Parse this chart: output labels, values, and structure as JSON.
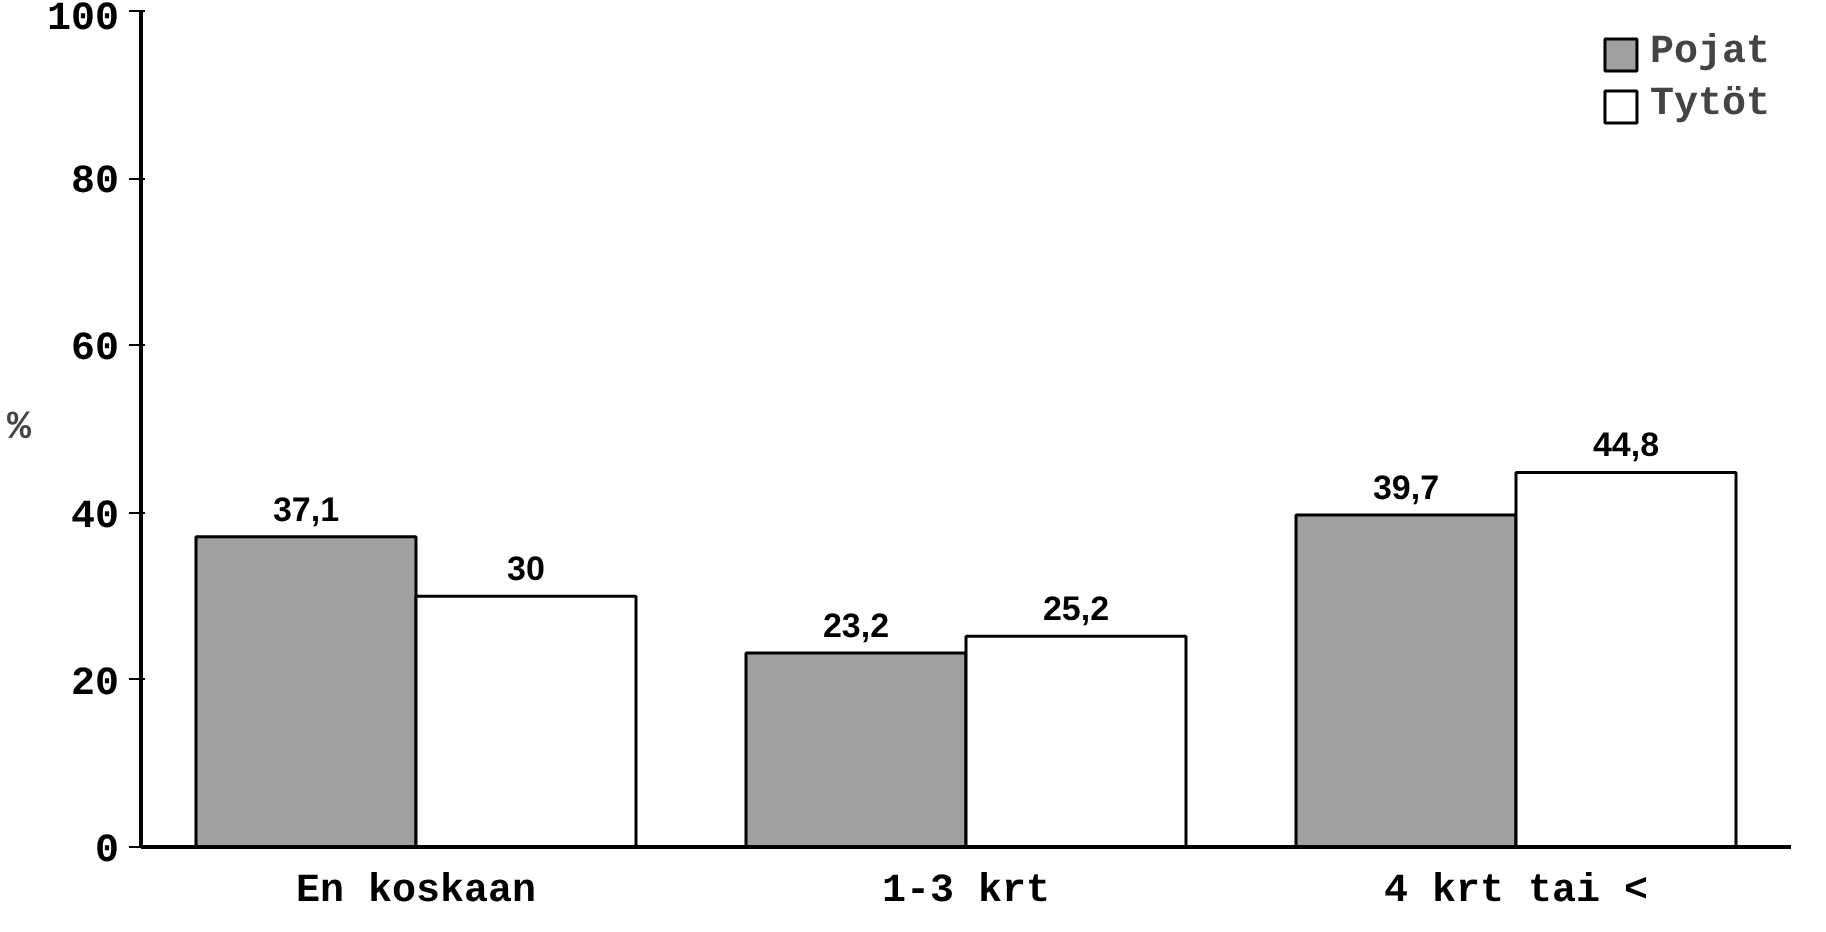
{
  "chart_data": {
    "type": "bar",
    "ylabel": "%",
    "categories": [
      "En koskaan",
      "1-3 krt",
      "4 krt tai <"
    ],
    "series": [
      {
        "name": "Pojat",
        "color": "#a0a0a0",
        "values": [
          37.1,
          23.2,
          39.7
        ],
        "value_labels": [
          "37,1",
          "23,2",
          "39,7"
        ]
      },
      {
        "name": "Tytöt",
        "color": "#ffffff",
        "values": [
          30,
          25.2,
          44.8
        ],
        "value_labels": [
          "30",
          "25,2",
          "44,8"
        ]
      }
    ],
    "ylim": [
      0,
      100
    ],
    "yticks": [
      0,
      20,
      40,
      60,
      80,
      100
    ],
    "grid": false,
    "legend": "top right"
  }
}
